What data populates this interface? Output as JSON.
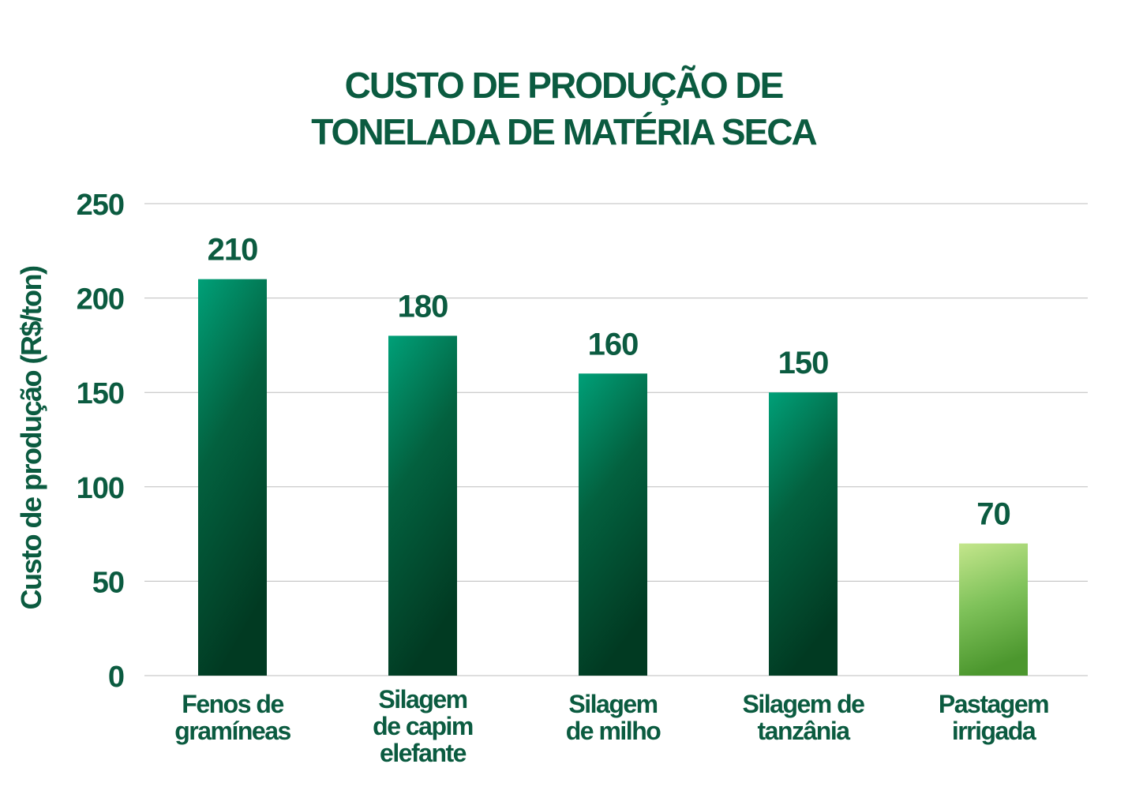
{
  "chart_data": {
    "type": "bar",
    "title_lines": [
      "CUSTO DE PRODUÇÃO DE",
      "TONELADA DE MATÉRIA SECA"
    ],
    "ylabel": "Custo de produção (R$/ton)",
    "xlabel": "",
    "categories": [
      "Fenos de\ngramíneas",
      "Silagem\nde capim\nelefante",
      "Silagem\nde milho",
      "Silagem de\ntanzânia",
      "Pastagem\nirrigada"
    ],
    "values": [
      210,
      180,
      160,
      150,
      70
    ],
    "data_labels": [
      "210",
      "180",
      "160",
      "150",
      "70"
    ],
    "ylim": [
      0,
      250
    ],
    "yticks": [
      0,
      50,
      100,
      150,
      200,
      250
    ],
    "grid": true,
    "colors": {
      "text": "#0b5b40",
      "bar_top": "#00a078",
      "bar_bottom": "#013f25",
      "highlight_top": "#c4e68c",
      "highlight_bottom": "#4c972e",
      "grid": "#bdbdbd"
    }
  }
}
